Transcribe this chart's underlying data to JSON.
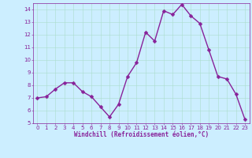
{
  "x": [
    0,
    1,
    2,
    3,
    4,
    5,
    6,
    7,
    8,
    9,
    10,
    11,
    12,
    13,
    14,
    15,
    16,
    17,
    18,
    19,
    20,
    21,
    22,
    23
  ],
  "y": [
    7.0,
    7.1,
    7.7,
    8.2,
    8.2,
    7.5,
    7.1,
    6.3,
    5.5,
    6.5,
    8.7,
    9.8,
    12.2,
    11.5,
    13.9,
    13.6,
    14.4,
    13.5,
    12.9,
    10.8,
    8.7,
    8.5,
    7.3,
    5.3
  ],
  "line_color": "#882299",
  "marker": "D",
  "marker_size": 2.5,
  "bg_color": "#cceeff",
  "grid_color": "#aaddcc",
  "tick_color": "#882299",
  "xlabel": "Windchill (Refroidissement éolien,°C)",
  "xlabel_color": "#882299",
  "ylim": [
    5,
    14.5
  ],
  "xlim": [
    -0.5,
    23.5
  ],
  "yticks": [
    5,
    6,
    7,
    8,
    9,
    10,
    11,
    12,
    13,
    14
  ],
  "xticks": [
    0,
    1,
    2,
    3,
    4,
    5,
    6,
    7,
    8,
    9,
    10,
    11,
    12,
    13,
    14,
    15,
    16,
    17,
    18,
    19,
    20,
    21,
    22,
    23
  ],
  "spine_color": "#882299",
  "line_width": 1.0,
  "tick_fontsize": 5.0,
  "xlabel_fontsize": 5.5
}
